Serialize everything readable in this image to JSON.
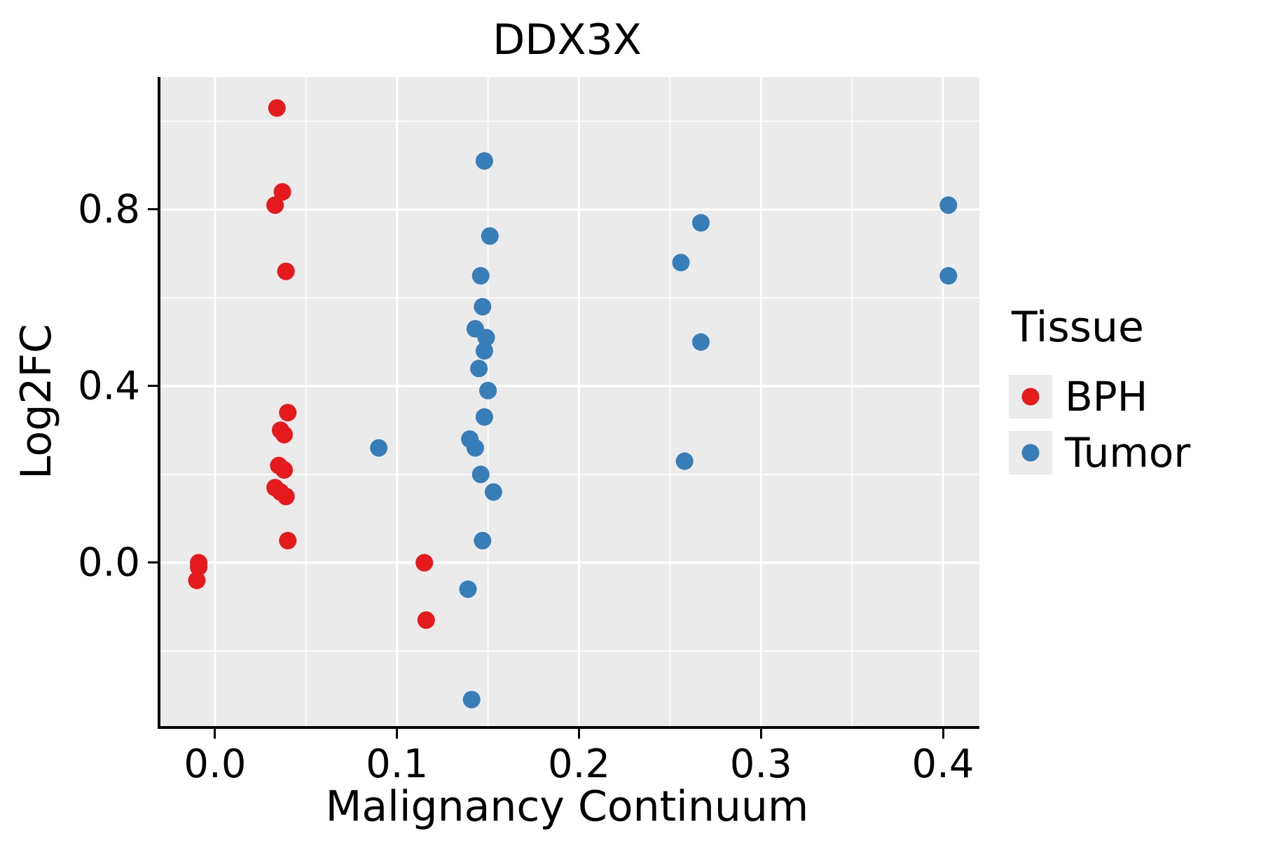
{
  "title": "DDX3X",
  "axes": {
    "x": {
      "label": "Malignancy Continuum",
      "ticks": [
        0.0,
        0.1,
        0.2,
        0.3,
        0.4
      ],
      "tick_labels": [
        "0.0",
        "0.1",
        "0.2",
        "0.3",
        "0.4"
      ],
      "minor_ticks": [
        0.05,
        0.15,
        0.25,
        0.35
      ]
    },
    "y": {
      "label": "Log2FC",
      "ticks": [
        0.0,
        0.4,
        0.8
      ],
      "tick_labels": [
        "0.0",
        "0.4",
        "0.8"
      ],
      "minor_ticks": [
        -0.2,
        0.2,
        0.6,
        1.0
      ]
    }
  },
  "legend": {
    "title": "Tissue",
    "items": [
      {
        "label": "BPH",
        "color": "#e41a1c"
      },
      {
        "label": "Tumor",
        "color": "#377eb8"
      }
    ]
  },
  "chart_data": {
    "type": "scatter",
    "title": "DDX3X",
    "xlabel": "Malignancy Continuum",
    "ylabel": "Log2FC",
    "xlim": [
      -0.03,
      0.42
    ],
    "ylim": [
      -0.37,
      1.1
    ],
    "grid": "major+minor",
    "legend_position": "right",
    "panel_background": "#ebebeb",
    "gridline_color": "#ffffff",
    "series": [
      {
        "name": "BPH",
        "color": "#e41a1c",
        "points": [
          [
            -0.009,
            0.0
          ],
          [
            -0.009,
            -0.01
          ],
          [
            -0.01,
            -0.04
          ],
          [
            0.034,
            1.03
          ],
          [
            0.037,
            0.84
          ],
          [
            0.033,
            0.81
          ],
          [
            0.039,
            0.66
          ],
          [
            0.04,
            0.34
          ],
          [
            0.036,
            0.3
          ],
          [
            0.038,
            0.29
          ],
          [
            0.035,
            0.22
          ],
          [
            0.038,
            0.21
          ],
          [
            0.033,
            0.17
          ],
          [
            0.036,
            0.16
          ],
          [
            0.039,
            0.15
          ],
          [
            0.04,
            0.05
          ],
          [
            0.115,
            0.0
          ],
          [
            0.116,
            -0.13
          ]
        ]
      },
      {
        "name": "Tumor",
        "color": "#377eb8",
        "points": [
          [
            0.09,
            0.26
          ],
          [
            0.148,
            0.91
          ],
          [
            0.151,
            0.74
          ],
          [
            0.146,
            0.65
          ],
          [
            0.147,
            0.58
          ],
          [
            0.143,
            0.53
          ],
          [
            0.149,
            0.51
          ],
          [
            0.148,
            0.48
          ],
          [
            0.145,
            0.44
          ],
          [
            0.15,
            0.39
          ],
          [
            0.148,
            0.33
          ],
          [
            0.14,
            0.28
          ],
          [
            0.143,
            0.26
          ],
          [
            0.146,
            0.2
          ],
          [
            0.153,
            0.16
          ],
          [
            0.147,
            0.05
          ],
          [
            0.139,
            -0.06
          ],
          [
            0.141,
            -0.31
          ],
          [
            0.256,
            0.68
          ],
          [
            0.267,
            0.77
          ],
          [
            0.267,
            0.5
          ],
          [
            0.258,
            0.23
          ],
          [
            0.403,
            0.81
          ],
          [
            0.403,
            0.65
          ]
        ]
      }
    ]
  }
}
